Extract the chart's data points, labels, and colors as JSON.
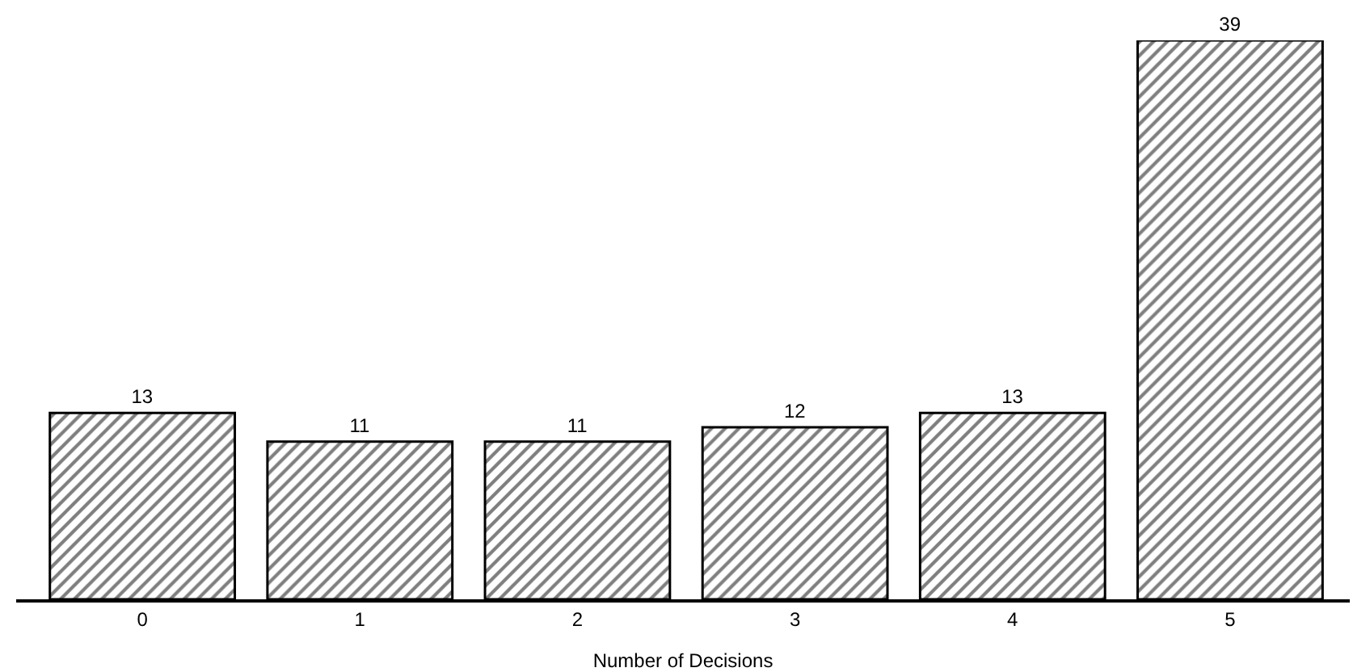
{
  "chart_data": {
    "type": "bar",
    "xlabel": "Number of Decisions",
    "categories": [
      "0",
      "1",
      "2",
      "3",
      "4",
      "5"
    ],
    "values": [
      13,
      11,
      11,
      12,
      13,
      39
    ],
    "color": "#000000",
    "data_labels": true
  }
}
